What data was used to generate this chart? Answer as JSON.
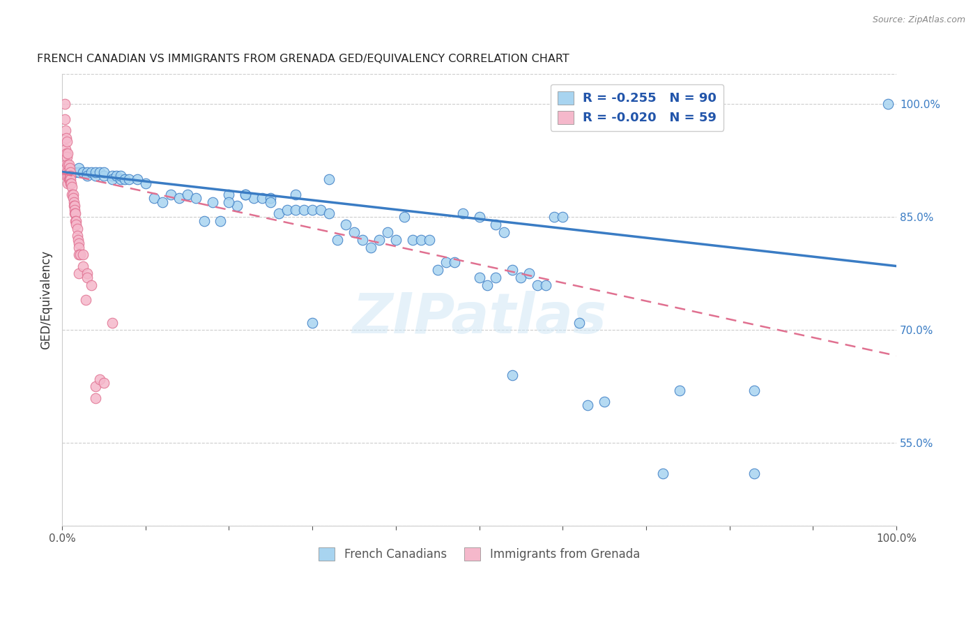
{
  "title": "FRENCH CANADIAN VS IMMIGRANTS FROM GRENADA GED/EQUIVALENCY CORRELATION CHART",
  "source": "Source: ZipAtlas.com",
  "ylabel": "GED/Equivalency",
  "xlim": [
    0.0,
    1.0
  ],
  "ylim": [
    0.44,
    1.04
  ],
  "ytick_labels_right": [
    "100.0%",
    "85.0%",
    "70.0%",
    "55.0%"
  ],
  "ytick_vals_right": [
    1.0,
    0.85,
    0.7,
    0.55
  ],
  "watermark": "ZIPatlas",
  "legend_label1": "R = -0.255   N = 90",
  "legend_label2": "R = -0.020   N = 59",
  "legend_bottom_label1": "French Canadians",
  "legend_bottom_label2": "Immigrants from Grenada",
  "color_blue": "#a8d4f0",
  "color_pink": "#f5b8cb",
  "color_blue_dark": "#3a7cc4",
  "color_pink_dark": "#e07090",
  "blue_line_x0": 0.0,
  "blue_line_y0": 0.91,
  "blue_line_x1": 1.0,
  "blue_line_y1": 0.785,
  "pink_line_x0": 0.0,
  "pink_line_y0": 0.908,
  "pink_line_x1": 1.0,
  "pink_line_y1": 0.666,
  "blue_scatter_x": [
    0.005,
    0.01,
    0.015,
    0.02,
    0.02,
    0.025,
    0.03,
    0.03,
    0.035,
    0.04,
    0.04,
    0.045,
    0.05,
    0.05,
    0.06,
    0.06,
    0.065,
    0.07,
    0.07,
    0.075,
    0.08,
    0.09,
    0.1,
    0.11,
    0.12,
    0.13,
    0.14,
    0.15,
    0.16,
    0.17,
    0.18,
    0.19,
    0.2,
    0.21,
    0.22,
    0.23,
    0.24,
    0.25,
    0.26,
    0.27,
    0.28,
    0.29,
    0.3,
    0.31,
    0.32,
    0.33,
    0.34,
    0.35,
    0.36,
    0.37,
    0.38,
    0.39,
    0.4,
    0.41,
    0.42,
    0.43,
    0.44,
    0.45,
    0.46,
    0.47,
    0.48,
    0.5,
    0.52,
    0.53,
    0.54,
    0.55,
    0.56,
    0.57,
    0.58,
    0.59,
    0.6,
    0.62,
    0.63,
    0.65,
    0.72,
    0.74,
    0.83,
    0.83,
    0.99,
    0.0,
    0.3,
    0.32,
    0.28,
    0.25,
    0.22,
    0.2,
    0.5,
    0.51,
    0.52,
    0.54
  ],
  "blue_scatter_y": [
    0.91,
    0.91,
    0.91,
    0.91,
    0.915,
    0.91,
    0.91,
    0.905,
    0.91,
    0.905,
    0.91,
    0.91,
    0.905,
    0.91,
    0.905,
    0.9,
    0.905,
    0.9,
    0.905,
    0.9,
    0.9,
    0.9,
    0.895,
    0.875,
    0.87,
    0.88,
    0.875,
    0.88,
    0.875,
    0.845,
    0.87,
    0.845,
    0.88,
    0.865,
    0.88,
    0.875,
    0.875,
    0.875,
    0.855,
    0.86,
    0.86,
    0.86,
    0.86,
    0.86,
    0.855,
    0.82,
    0.84,
    0.83,
    0.82,
    0.81,
    0.82,
    0.83,
    0.82,
    0.85,
    0.82,
    0.82,
    0.82,
    0.78,
    0.79,
    0.79,
    0.855,
    0.85,
    0.84,
    0.83,
    0.78,
    0.77,
    0.775,
    0.76,
    0.76,
    0.85,
    0.85,
    0.71,
    0.6,
    0.605,
    0.51,
    0.62,
    0.62,
    0.51,
    1.0,
    0.91,
    0.71,
    0.9,
    0.88,
    0.87,
    0.88,
    0.87,
    0.77,
    0.76,
    0.77,
    0.64
  ],
  "pink_scatter_x": [
    0.003,
    0.003,
    0.004,
    0.004,
    0.004,
    0.005,
    0.005,
    0.005,
    0.005,
    0.006,
    0.006,
    0.006,
    0.007,
    0.007,
    0.007,
    0.007,
    0.008,
    0.008,
    0.008,
    0.009,
    0.009,
    0.009,
    0.01,
    0.01,
    0.01,
    0.01,
    0.011,
    0.012,
    0.012,
    0.013,
    0.013,
    0.014,
    0.014,
    0.015,
    0.015,
    0.015,
    0.016,
    0.016,
    0.017,
    0.017,
    0.018,
    0.018,
    0.019,
    0.02,
    0.02,
    0.02,
    0.02,
    0.022,
    0.025,
    0.025,
    0.028,
    0.03,
    0.03,
    0.035,
    0.04,
    0.04,
    0.045,
    0.05,
    0.06
  ],
  "pink_scatter_y": [
    1.0,
    0.98,
    0.965,
    0.94,
    0.92,
    0.955,
    0.935,
    0.915,
    0.905,
    0.95,
    0.93,
    0.91,
    0.935,
    0.92,
    0.905,
    0.895,
    0.92,
    0.91,
    0.9,
    0.915,
    0.905,
    0.9,
    0.91,
    0.905,
    0.9,
    0.895,
    0.895,
    0.89,
    0.88,
    0.88,
    0.875,
    0.87,
    0.865,
    0.865,
    0.86,
    0.855,
    0.855,
    0.845,
    0.845,
    0.84,
    0.835,
    0.825,
    0.82,
    0.815,
    0.81,
    0.8,
    0.775,
    0.8,
    0.8,
    0.785,
    0.74,
    0.775,
    0.77,
    0.76,
    0.625,
    0.61,
    0.635,
    0.63,
    0.71
  ]
}
